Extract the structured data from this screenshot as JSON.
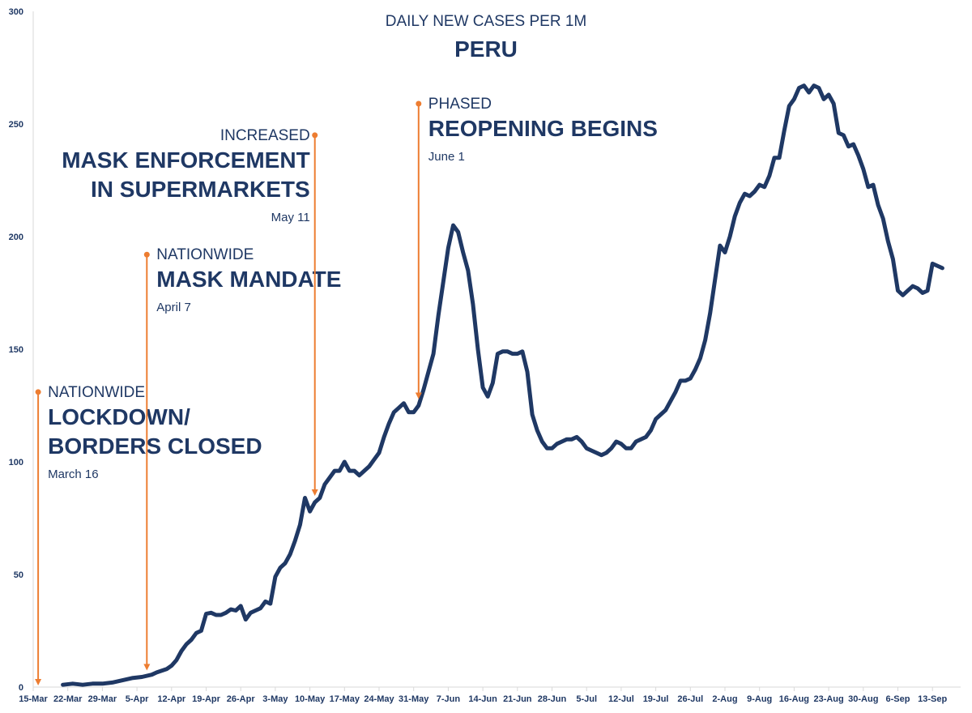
{
  "chart_data": {
    "type": "line",
    "title": "PERU",
    "subtitle": "DAILY NEW CASES PER 1M",
    "xlabel": "",
    "ylabel": "",
    "ylim": [
      0,
      300
    ],
    "yticks": [
      0,
      50,
      100,
      150,
      200,
      250,
      300
    ],
    "xlim": [
      0,
      186
    ],
    "grid": false,
    "legend": "none",
    "x_tick_labels": [
      "15-Mar",
      "22-Mar",
      "29-Mar",
      "5-Apr",
      "12-Apr",
      "19-Apr",
      "26-Apr",
      "3-May",
      "10-May",
      "17-May",
      "24-May",
      "31-May",
      "7-Jun",
      "14-Jun",
      "21-Jun",
      "28-Jun",
      "5-Jul",
      "12-Jul",
      "19-Jul",
      "26-Jul",
      "2-Aug",
      "9-Aug",
      "16-Aug",
      "23-Aug",
      "30-Aug",
      "6-Sep",
      "13-Sep"
    ],
    "series": [
      {
        "name": "Daily new cases per 1M (Peru)",
        "color": "#1f3864",
        "points": [
          [
            6,
            1
          ],
          [
            8,
            1.5
          ],
          [
            10,
            1
          ],
          [
            12,
            1.5
          ],
          [
            14,
            1.5
          ],
          [
            16,
            2
          ],
          [
            18,
            3
          ],
          [
            20,
            4
          ],
          [
            22,
            4.5
          ],
          [
            24,
            5.5
          ],
          [
            25,
            6.5
          ],
          [
            27,
            8
          ],
          [
            28,
            9.5
          ],
          [
            29,
            12
          ],
          [
            30,
            16
          ],
          [
            31,
            19
          ],
          [
            32,
            21
          ],
          [
            33,
            24
          ],
          [
            34,
            25
          ],
          [
            35,
            32.5
          ],
          [
            36,
            33
          ],
          [
            37,
            32
          ],
          [
            38,
            32
          ],
          [
            39,
            33
          ],
          [
            40,
            34.5
          ],
          [
            41,
            34
          ],
          [
            42,
            36
          ],
          [
            43,
            30
          ],
          [
            44,
            33
          ],
          [
            45,
            34
          ],
          [
            46,
            35
          ],
          [
            47,
            38
          ],
          [
            48,
            37
          ],
          [
            49,
            49
          ],
          [
            50,
            53
          ],
          [
            51,
            55
          ],
          [
            52,
            59
          ],
          [
            53,
            65
          ],
          [
            54,
            72
          ],
          [
            55,
            84
          ],
          [
            56,
            78
          ],
          [
            57,
            82
          ],
          [
            58,
            84
          ],
          [
            59,
            90
          ],
          [
            60,
            93
          ],
          [
            61,
            96
          ],
          [
            62,
            96
          ],
          [
            63,
            100
          ],
          [
            64,
            96
          ],
          [
            65,
            96
          ],
          [
            66,
            94
          ],
          [
            67,
            96
          ],
          [
            68,
            98
          ],
          [
            69,
            101
          ],
          [
            70,
            104
          ],
          [
            71,
            111
          ],
          [
            72,
            117
          ],
          [
            73,
            122
          ],
          [
            74,
            124
          ],
          [
            75,
            126
          ],
          [
            76,
            122
          ],
          [
            77,
            122
          ],
          [
            78,
            125
          ],
          [
            79,
            132
          ],
          [
            80,
            140
          ],
          [
            81,
            148
          ],
          [
            82,
            165
          ],
          [
            83,
            180
          ],
          [
            84,
            195
          ],
          [
            85,
            205
          ],
          [
            86,
            202
          ],
          [
            87,
            193
          ],
          [
            88,
            185
          ],
          [
            89,
            170
          ],
          [
            90,
            150
          ],
          [
            91,
            133
          ],
          [
            92,
            129
          ],
          [
            93,
            135
          ],
          [
            94,
            148
          ],
          [
            95,
            149
          ],
          [
            96,
            149
          ],
          [
            97,
            148
          ],
          [
            98,
            148
          ],
          [
            99,
            149
          ],
          [
            100,
            140
          ],
          [
            101,
            121
          ],
          [
            102,
            114
          ],
          [
            103,
            109
          ],
          [
            104,
            106
          ],
          [
            105,
            106
          ],
          [
            106,
            108
          ],
          [
            107,
            109
          ],
          [
            108,
            110
          ],
          [
            109,
            110
          ],
          [
            110,
            111
          ],
          [
            111,
            109
          ],
          [
            112,
            106
          ],
          [
            113,
            105
          ],
          [
            114,
            104
          ],
          [
            115,
            103
          ],
          [
            116,
            104
          ],
          [
            117,
            106
          ],
          [
            118,
            109
          ],
          [
            119,
            108
          ],
          [
            120,
            106
          ],
          [
            121,
            106
          ],
          [
            122,
            109
          ],
          [
            123,
            110
          ],
          [
            124,
            111
          ],
          [
            125,
            114
          ],
          [
            126,
            119
          ],
          [
            127,
            121
          ],
          [
            128,
            123
          ],
          [
            129,
            127
          ],
          [
            130,
            131
          ],
          [
            131,
            136
          ],
          [
            132,
            136
          ],
          [
            133,
            137
          ],
          [
            134,
            141
          ],
          [
            135,
            146
          ],
          [
            136,
            154
          ],
          [
            137,
            166
          ],
          [
            138,
            181
          ],
          [
            139,
            196
          ],
          [
            140,
            193
          ],
          [
            141,
            200
          ],
          [
            142,
            209
          ],
          [
            143,
            215
          ],
          [
            144,
            219
          ],
          [
            145,
            218
          ],
          [
            146,
            220
          ],
          [
            147,
            223
          ],
          [
            148,
            222
          ],
          [
            149,
            227
          ],
          [
            150,
            235
          ],
          [
            151,
            235
          ],
          [
            152,
            247
          ],
          [
            153,
            258
          ],
          [
            154,
            261
          ],
          [
            155,
            266
          ],
          [
            156,
            267
          ],
          [
            157,
            264
          ],
          [
            158,
            267
          ],
          [
            159,
            266
          ],
          [
            160,
            261
          ],
          [
            161,
            263
          ],
          [
            162,
            259
          ],
          [
            163,
            246
          ],
          [
            164,
            245
          ],
          [
            165,
            240
          ],
          [
            166,
            241
          ],
          [
            167,
            236
          ],
          [
            168,
            230
          ],
          [
            169,
            222
          ],
          [
            170,
            223
          ],
          [
            171,
            214
          ],
          [
            172,
            208
          ],
          [
            173,
            198
          ],
          [
            174,
            190
          ],
          [
            175,
            176
          ],
          [
            176,
            174
          ],
          [
            177,
            176
          ],
          [
            178,
            178
          ],
          [
            179,
            177
          ],
          [
            180,
            175
          ],
          [
            181,
            176
          ],
          [
            182,
            188
          ],
          [
            183,
            187
          ],
          [
            184,
            186
          ]
        ]
      }
    ],
    "annotations": [
      {
        "pre": "NATIONWIDE",
        "lines": [
          "LOCKDOWN/",
          "BORDERS CLOSED"
        ],
        "date": "March 16",
        "x": 1,
        "y_top": 131,
        "align": "left"
      },
      {
        "pre": "NATIONWIDE",
        "lines": [
          "MASK MANDATE"
        ],
        "date": "April 7",
        "x": 23,
        "y_top": 192,
        "align": "left"
      },
      {
        "pre": "INCREASED",
        "lines": [
          "MASK ENFORCEMENT",
          "IN SUPERMARKETS"
        ],
        "date": "May 11",
        "x": 57,
        "y_top": 245,
        "align": "right"
      },
      {
        "pre": "PHASED",
        "lines": [
          "REOPENING BEGINS"
        ],
        "date": "June 1",
        "x": 78,
        "y_top": 259,
        "align": "left"
      }
    ],
    "colors": {
      "line": "#1f3864",
      "annotation_arrow": "#ed7d31",
      "axis": "#d9d9d9",
      "text": "#1f3864"
    }
  }
}
